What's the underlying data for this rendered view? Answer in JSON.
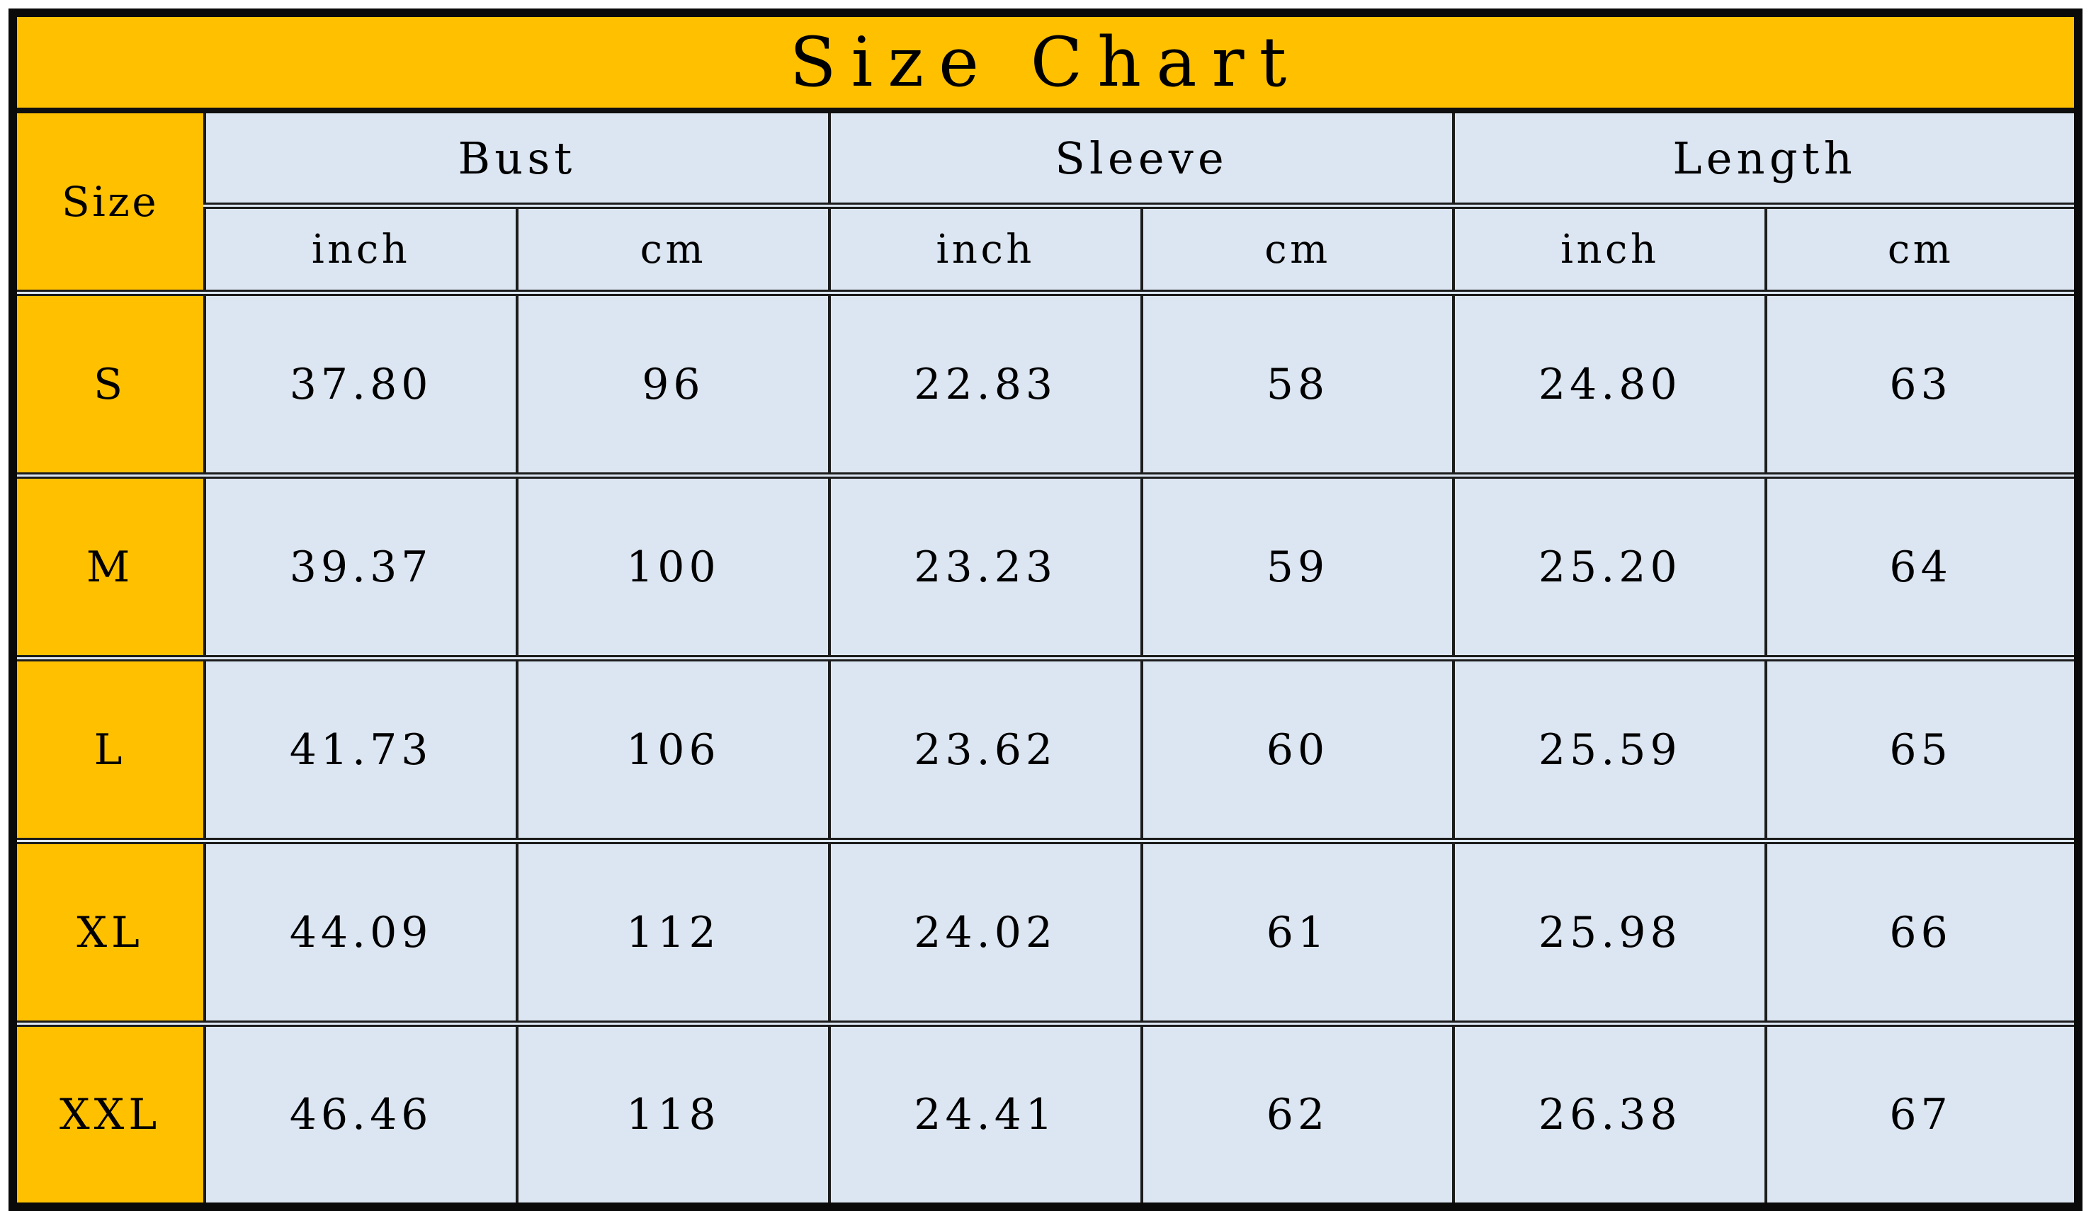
{
  "title": "Size Chart",
  "colors": {
    "title_bg": "#FFC000",
    "size_column_bg": "#FFC000",
    "cell_bg": "#DCE6F2",
    "border": "#1C1C1C",
    "text": "#000000"
  },
  "header": {
    "size_label": "Size",
    "groups": [
      {
        "label": "Bust"
      },
      {
        "label": "Sleeve"
      },
      {
        "label": "Length"
      }
    ],
    "units": [
      "inch",
      "cm"
    ]
  },
  "rows": [
    {
      "size": "S",
      "bust_inch": "37.80",
      "bust_cm": "96",
      "sleeve_inch": "22.83",
      "sleeve_cm": "58",
      "length_inch": "24.80",
      "length_cm": "63"
    },
    {
      "size": "M",
      "bust_inch": "39.37",
      "bust_cm": "100",
      "sleeve_inch": "23.23",
      "sleeve_cm": "59",
      "length_inch": "25.20",
      "length_cm": "64"
    },
    {
      "size": "L",
      "bust_inch": "41.73",
      "bust_cm": "106",
      "sleeve_inch": "23.62",
      "sleeve_cm": "60",
      "length_inch": "25.59",
      "length_cm": "65"
    },
    {
      "size": "XL",
      "bust_inch": "44.09",
      "bust_cm": "112",
      "sleeve_inch": "24.02",
      "sleeve_cm": "61",
      "length_inch": "25.98",
      "length_cm": "66"
    },
    {
      "size": "XXL",
      "bust_inch": "46.46",
      "bust_cm": "118",
      "sleeve_inch": "24.41",
      "sleeve_cm": "62",
      "length_inch": "26.38",
      "length_cm": "67"
    }
  ],
  "chart_data": {
    "type": "table",
    "title": "Size Chart",
    "columns": [
      "Size",
      "Bust inch",
      "Bust cm",
      "Sleeve inch",
      "Sleeve cm",
      "Length inch",
      "Length cm"
    ],
    "rows": [
      [
        "S",
        37.8,
        96,
        22.83,
        58,
        24.8,
        63
      ],
      [
        "M",
        39.37,
        100,
        23.23,
        59,
        25.2,
        64
      ],
      [
        "L",
        41.73,
        106,
        23.62,
        60,
        25.59,
        65
      ],
      [
        "XL",
        44.09,
        112,
        24.02,
        61,
        25.98,
        66
      ],
      [
        "XXL",
        46.46,
        118,
        24.41,
        62,
        26.38,
        67
      ]
    ],
    "layout": {
      "title_position": "top-banner",
      "grouped_columns": true,
      "unit_subheaders": [
        "inch",
        "cm"
      ]
    }
  }
}
